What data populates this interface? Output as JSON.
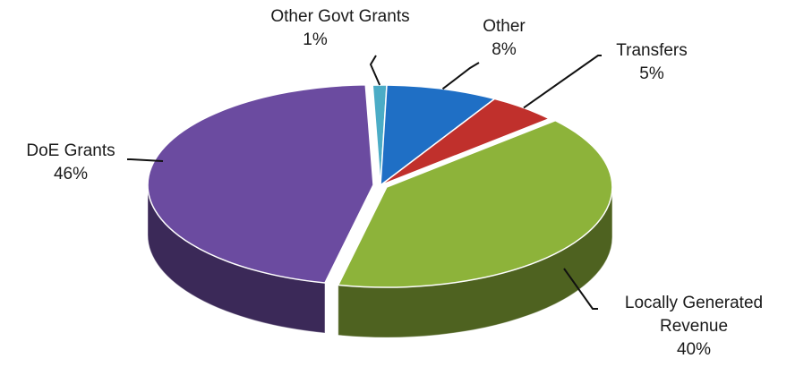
{
  "chart_data": {
    "type": "pie",
    "title": "",
    "style": "3d",
    "slices": [
      {
        "label": "Other Govt Grants",
        "value": 1,
        "value_label": "1%",
        "color": "#4bacc6"
      },
      {
        "label": "Other",
        "value": 8,
        "value_label": "8%",
        "color": "#1f6fc5"
      },
      {
        "label": "Transfers",
        "value": 5,
        "value_label": "5%",
        "color": "#c0302c"
      },
      {
        "label": "Locally Generated Revenue",
        "label_lines": [
          "Locally Generated",
          "Revenue"
        ],
        "value": 40,
        "value_label": "40%",
        "color": "#8db33a"
      },
      {
        "label": "DoE Grants",
        "value": 46,
        "value_label": "46%",
        "color": "#6b4ba0"
      }
    ]
  }
}
